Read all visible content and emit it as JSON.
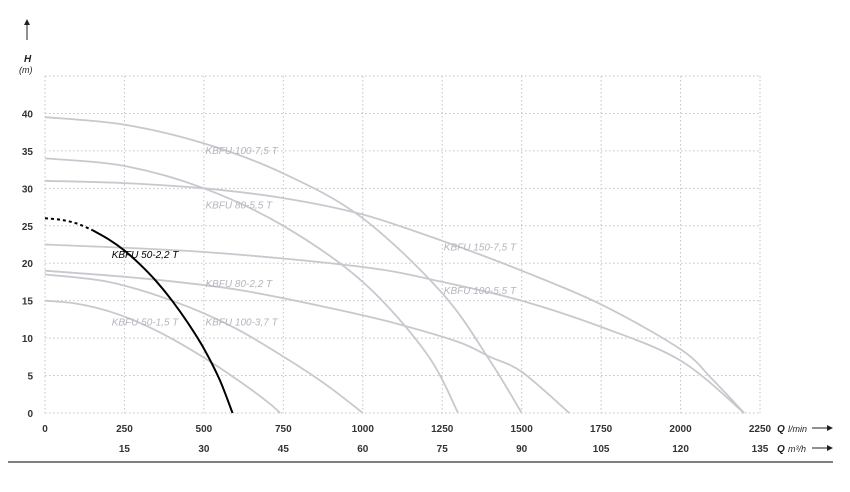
{
  "chart_data": {
    "type": "line",
    "title": "",
    "ylabel": "H",
    "ylabel_unit": "(m)",
    "xlabel": "Q",
    "xlabel_unit": "l/min",
    "x2label": "Q",
    "x2label_unit": "m³/h",
    "xlim": [
      0,
      2250
    ],
    "ylim": [
      0,
      45
    ],
    "grid": true,
    "x_ticks": [
      "0",
      "250",
      "500",
      "750",
      "1000",
      "1250",
      "1500",
      "1750",
      "2000",
      "2250"
    ],
    "x2_ticks": [
      "15",
      "30",
      "45",
      "60",
      "75",
      "90",
      "105",
      "120",
      "135"
    ],
    "y_ticks": [
      "0",
      "5",
      "10",
      "15",
      "20",
      "25",
      "30",
      "35",
      "40"
    ],
    "colors": {
      "highlight": "#000000",
      "other": "#c8c8cf",
      "label_other": "#b5b5bd",
      "grid": "#c2c2c8"
    },
    "series": [
      {
        "name": "KBFU 50-1,5 T",
        "highlight": false,
        "dashed_until": 0,
        "x": [
          0,
          100,
          200,
          300,
          400,
          500,
          600,
          700,
          740
        ],
        "y": [
          15.0,
          14.6,
          13.6,
          12.0,
          9.9,
          7.4,
          4.6,
          1.5,
          0
        ]
      },
      {
        "name": "KBFU 50-2,2 T",
        "highlight": true,
        "dashed_until": 150,
        "x": [
          0,
          50,
          100,
          150,
          200,
          250,
          300,
          350,
          400,
          450,
          500,
          550,
          590
        ],
        "y": [
          26.0,
          25.8,
          25.3,
          24.4,
          23.2,
          21.7,
          19.8,
          17.6,
          15.0,
          12.0,
          8.6,
          4.4,
          0
        ]
      },
      {
        "name": "KBFU 80-2,2 T",
        "highlight": false,
        "dashed_until": 0,
        "x": [
          0,
          200,
          400,
          600,
          800,
          900,
          1000
        ],
        "y": [
          18.5,
          17.5,
          15.0,
          11.3,
          6.2,
          3.3,
          0
        ]
      },
      {
        "name": "KBFU 100-3,7 T",
        "highlight": false,
        "dashed_until": 0,
        "x": [
          0,
          300,
          600,
          900,
          1100,
          1300,
          1400,
          1500,
          1650
        ],
        "y": [
          19.0,
          18.0,
          16.5,
          14.0,
          12.0,
          9.5,
          7.5,
          5.5,
          0
        ]
      },
      {
        "name": "KBFU 80-5,5 T",
        "highlight": false,
        "dashed_until": 0,
        "x": [
          0,
          250,
          500,
          750,
          1000,
          1200,
          1300
        ],
        "y": [
          34.0,
          33.0,
          30.0,
          25.0,
          17.5,
          8.0,
          0
        ]
      },
      {
        "name": "KBFU 100-5,5 T",
        "highlight": false,
        "dashed_until": 0,
        "x": [
          0,
          500,
          1000,
          1250,
          1500,
          1750,
          2000,
          2200
        ],
        "y": [
          22.5,
          21.5,
          19.5,
          17.5,
          15.0,
          11.5,
          7.0,
          0
        ]
      },
      {
        "name": "KBFU 100-7,5 T",
        "highlight": false,
        "dashed_until": 0,
        "x": [
          0,
          250,
          500,
          750,
          1000,
          1250,
          1400,
          1500
        ],
        "y": [
          39.5,
          38.5,
          36.0,
          32.0,
          26.0,
          16.0,
          7.0,
          0
        ]
      },
      {
        "name": "KBFU 150-7,5 T",
        "highlight": false,
        "dashed_until": 0,
        "x": [
          0,
          250,
          500,
          750,
          1000,
          1250,
          1500,
          1750,
          2000,
          2100,
          2200
        ],
        "y": [
          31.0,
          30.7,
          30.0,
          28.7,
          26.5,
          23.0,
          19.0,
          14.5,
          8.5,
          4.5,
          0
        ]
      }
    ],
    "labels": [
      {
        "text": "KBFU 100-7,5 T",
        "x": 505,
        "y": 34.6
      },
      {
        "text": "KBFU 80-5,5 T",
        "x": 505,
        "y": 27.3
      },
      {
        "text": "KBFU 150-7,5 T",
        "x": 1255,
        "y": 21.7
      },
      {
        "text": "KBFU 50-2,2 T",
        "x": 210,
        "y": 20.7
      },
      {
        "text": "KBFU 80-2,2 T",
        "x": 505,
        "y": 16.8
      },
      {
        "text": "KBFU 100-5,5 T",
        "x": 1255,
        "y": 15.9
      },
      {
        "text": "KBFU 50-1,5 T",
        "x": 210,
        "y": 11.7
      },
      {
        "text": "KBFU 100-3,7 T",
        "x": 505,
        "y": 11.7
      }
    ]
  }
}
